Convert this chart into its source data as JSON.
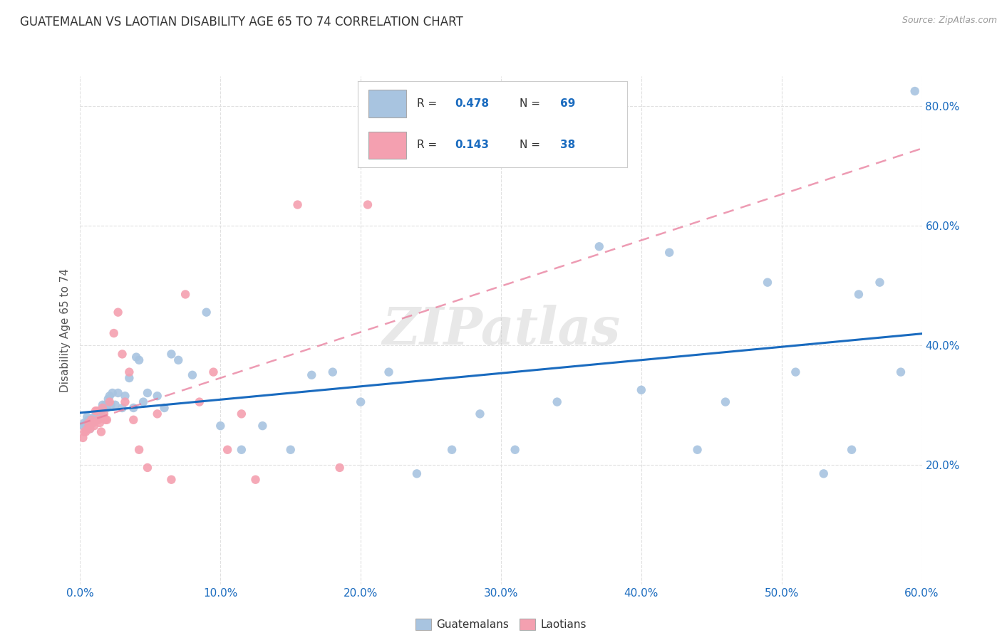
{
  "title": "GUATEMALAN VS LAOTIAN DISABILITY AGE 65 TO 74 CORRELATION CHART",
  "source": "Source: ZipAtlas.com",
  "ylabel": "Disability Age 65 to 74",
  "xlim": [
    0.0,
    0.6
  ],
  "ylim": [
    0.0,
    0.85
  ],
  "xtick_labels": [
    "0.0%",
    "10.0%",
    "20.0%",
    "30.0%",
    "40.0%",
    "50.0%",
    "60.0%"
  ],
  "xtick_vals": [
    0.0,
    0.1,
    0.2,
    0.3,
    0.4,
    0.5,
    0.6
  ],
  "ytick_labels": [
    "20.0%",
    "40.0%",
    "60.0%",
    "80.0%"
  ],
  "ytick_vals": [
    0.2,
    0.4,
    0.6,
    0.8
  ],
  "R_guatemalan": 0.478,
  "N_guatemalan": 69,
  "R_laotian": 0.143,
  "N_laotian": 38,
  "color_guatemalan": "#a8c4e0",
  "color_laotian": "#f4a0b0",
  "line_color_guatemalan": "#1a6bbf",
  "line_color_laotian": "#e87a9a",
  "watermark": "ZIPatlas",
  "background_color": "#ffffff",
  "grid_color": "#e0e0e0",
  "guatemalan_x": [
    0.002,
    0.003,
    0.004,
    0.005,
    0.005,
    0.006,
    0.006,
    0.007,
    0.007,
    0.008,
    0.009,
    0.01,
    0.01,
    0.011,
    0.012,
    0.013,
    0.013,
    0.014,
    0.015,
    0.016,
    0.017,
    0.018,
    0.019,
    0.02,
    0.021,
    0.022,
    0.023,
    0.025,
    0.027,
    0.03,
    0.032,
    0.035,
    0.038,
    0.04,
    0.042,
    0.045,
    0.048,
    0.055,
    0.06,
    0.065,
    0.07,
    0.08,
    0.09,
    0.1,
    0.115,
    0.13,
    0.15,
    0.165,
    0.18,
    0.2,
    0.22,
    0.24,
    0.265,
    0.285,
    0.31,
    0.34,
    0.37,
    0.4,
    0.42,
    0.44,
    0.46,
    0.49,
    0.51,
    0.53,
    0.55,
    0.57,
    0.585,
    0.595,
    0.555
  ],
  "guatemalan_y": [
    0.265,
    0.27,
    0.265,
    0.27,
    0.28,
    0.265,
    0.275,
    0.26,
    0.27,
    0.275,
    0.27,
    0.275,
    0.28,
    0.28,
    0.275,
    0.28,
    0.285,
    0.29,
    0.285,
    0.3,
    0.295,
    0.3,
    0.295,
    0.31,
    0.315,
    0.3,
    0.32,
    0.3,
    0.32,
    0.295,
    0.315,
    0.345,
    0.295,
    0.38,
    0.375,
    0.305,
    0.32,
    0.315,
    0.295,
    0.385,
    0.375,
    0.35,
    0.455,
    0.265,
    0.225,
    0.265,
    0.225,
    0.35,
    0.355,
    0.305,
    0.355,
    0.185,
    0.225,
    0.285,
    0.225,
    0.305,
    0.565,
    0.325,
    0.555,
    0.225,
    0.305,
    0.505,
    0.355,
    0.185,
    0.225,
    0.505,
    0.355,
    0.825,
    0.485
  ],
  "laotian_x": [
    0.002,
    0.003,
    0.004,
    0.005,
    0.006,
    0.007,
    0.008,
    0.009,
    0.01,
    0.011,
    0.012,
    0.013,
    0.014,
    0.015,
    0.016,
    0.017,
    0.018,
    0.019,
    0.021,
    0.024,
    0.027,
    0.03,
    0.032,
    0.035,
    0.038,
    0.042,
    0.048,
    0.055,
    0.065,
    0.075,
    0.085,
    0.095,
    0.105,
    0.115,
    0.125,
    0.155,
    0.185,
    0.205
  ],
  "laotian_y": [
    0.245,
    0.255,
    0.255,
    0.26,
    0.27,
    0.26,
    0.275,
    0.27,
    0.265,
    0.29,
    0.29,
    0.275,
    0.27,
    0.255,
    0.295,
    0.285,
    0.275,
    0.275,
    0.305,
    0.42,
    0.455,
    0.385,
    0.305,
    0.355,
    0.275,
    0.225,
    0.195,
    0.285,
    0.175,
    0.485,
    0.305,
    0.355,
    0.225,
    0.285,
    0.175,
    0.635,
    0.195,
    0.635
  ]
}
